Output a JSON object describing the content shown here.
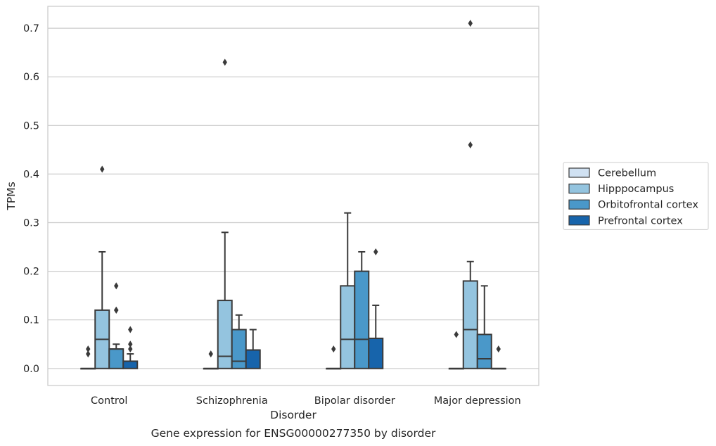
{
  "chart_data": {
    "type": "box",
    "caption": "Gene expression for ENSG00000277350 by disorder",
    "xlabel": "Disorder",
    "ylabel": "TPMs",
    "ylim": [
      -0.035,
      0.745
    ],
    "yticks": [
      0.0,
      0.1,
      0.2,
      0.3,
      0.4,
      0.5,
      0.6,
      0.7
    ],
    "ytick_labels": [
      "0.0",
      "0.1",
      "0.2",
      "0.3",
      "0.4",
      "0.5",
      "0.6",
      "0.7"
    ],
    "grid": true,
    "legend_position": "right, outside plot",
    "categories": [
      "Control",
      "Schizophrenia",
      "Bipolar disorder",
      "Major depression"
    ],
    "series": [
      {
        "name": "Cerebellum",
        "color": "#d0e1f2",
        "boxes": [
          {
            "min": 0,
            "q1": 0,
            "median": 0,
            "q3": 0,
            "max": 0,
            "outliers": [
              0.03,
              0.04
            ]
          },
          {
            "min": 0,
            "q1": 0,
            "median": 0,
            "q3": 0,
            "max": 0,
            "outliers": [
              0.03
            ]
          },
          {
            "min": 0,
            "q1": 0,
            "median": 0,
            "q3": 0,
            "max": 0,
            "outliers": [
              0.04
            ]
          },
          {
            "min": 0,
            "q1": 0,
            "median": 0,
            "q3": 0,
            "max": 0,
            "outliers": [
              0.07
            ]
          }
        ]
      },
      {
        "name": "Hipppocampus",
        "color": "#94c4df",
        "boxes": [
          {
            "min": 0,
            "q1": 0,
            "median": 0.06,
            "q3": 0.12,
            "max": 0.24,
            "outliers": [
              0.41
            ]
          },
          {
            "min": 0,
            "q1": 0,
            "median": 0.025,
            "q3": 0.14,
            "max": 0.28,
            "outliers": [
              0.63
            ]
          },
          {
            "min": 0,
            "q1": 0,
            "median": 0.06,
            "q3": 0.17,
            "max": 0.32,
            "outliers": []
          },
          {
            "min": 0,
            "q1": 0,
            "median": 0.08,
            "q3": 0.18,
            "max": 0.22,
            "outliers": [
              0.46,
              0.71
            ]
          }
        ]
      },
      {
        "name": "Orbitofrontal cortex",
        "color": "#4a98c9",
        "boxes": [
          {
            "min": 0,
            "q1": 0,
            "median": 0.04,
            "q3": 0.04,
            "max": 0.05,
            "outliers": [
              0.12,
              0.12,
              0.17
            ]
          },
          {
            "min": 0,
            "q1": 0,
            "median": 0.015,
            "q3": 0.08,
            "max": 0.11,
            "outliers": []
          },
          {
            "min": 0,
            "q1": 0,
            "median": 0.06,
            "q3": 0.2,
            "max": 0.24,
            "outliers": []
          },
          {
            "min": 0,
            "q1": 0,
            "median": 0.02,
            "q3": 0.07,
            "max": 0.17,
            "outliers": []
          }
        ]
      },
      {
        "name": "Prefrontal cortex",
        "color": "#1764ab",
        "boxes": [
          {
            "min": 0,
            "q1": 0,
            "median": 0.015,
            "q3": 0.015,
            "max": 0.03,
            "outliers": [
              0.04,
              0.05,
              0.08
            ]
          },
          {
            "min": 0,
            "q1": 0,
            "median": 0.038,
            "q3": 0.038,
            "max": 0.08,
            "outliers": []
          },
          {
            "min": 0,
            "q1": 0,
            "median": 0.062,
            "q3": 0.062,
            "max": 0.13,
            "outliers": [
              0.24
            ]
          },
          {
            "min": 0,
            "q1": 0,
            "median": 0,
            "q3": 0,
            "max": 0,
            "outliers": [
              0.04
            ]
          }
        ]
      }
    ]
  }
}
